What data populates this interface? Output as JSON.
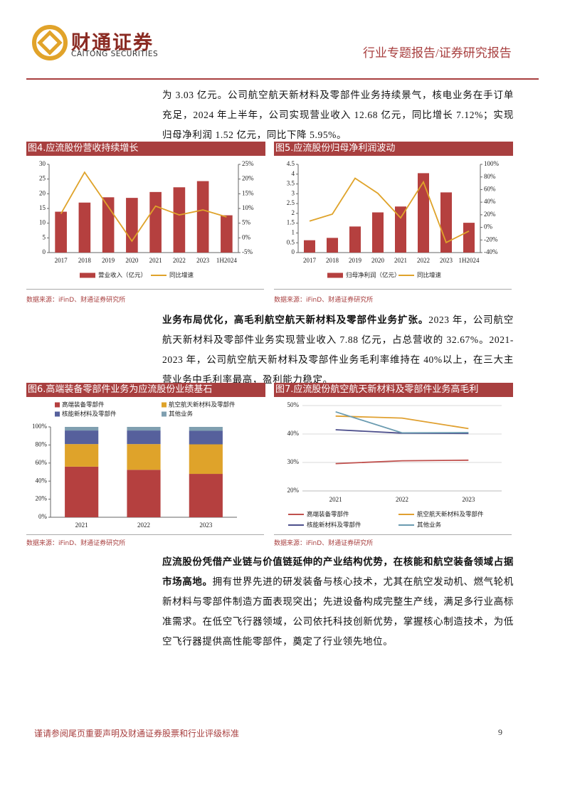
{
  "header": {
    "logo": "财通证券",
    "logo_en": "CAITONG SECURITIES",
    "report_type": "行业专题报告/证券研究报告"
  },
  "paragraphs": [
    {
      "text": "为 3.03 亿元。公司航空航天新材料及零部件业务持续景气，核电业务在手订单充足，2024 年上半年，公司实现营业收入 12.68 亿元，同比增长 7.12%；实现归母净利润 1.52 亿元，同比下降 5.95%。"
    },
    {
      "bold": "业务布局优化，高毛利航空航天新材料及零部件业务扩张。",
      "text": "2023 年，公司航空航天新材料及零部件业务实现营业收入 7.88 亿元，占总营收的 32.67%。2021-2023 年，公司航空航天新材料及零部件业务毛利率维持在 40%以上，在三大主营业务中毛利率最高，盈利能力稳定。"
    },
    {
      "bold": "应流股份凭借产业链与价值链延伸的产业结构优势，在核能和航空装备领域占据市场高地。",
      "text": "拥有世界先进的研发装备与核心技术，尤其在航空发动机、燃气轮机新材料与零部件制造方面表现突出；先进设备构成完整生产线，满足多行业高标准需求。在低空飞行器领域，公司依托科技创新优势，掌握核心制造技术，为低空飞行器提供高性能零部件，奠定了行业领先地位。"
    }
  ],
  "chart_data": [
    {
      "type": "bar_line",
      "title": "图4.应流股份营收持续增长",
      "categories": [
        "2017",
        "2018",
        "2019",
        "2020",
        "2021",
        "2022",
        "2023",
        "1H2024"
      ],
      "series": [
        {
          "name": "营业收入（亿元）",
          "type": "bar",
          "color": "#b5403f",
          "values": [
            13.9,
            17.0,
            18.8,
            18.6,
            20.6,
            22.2,
            24.3,
            12.68
          ]
        },
        {
          "name": "同比增速",
          "type": "line",
          "axis": "y2",
          "color": "#dfa32a",
          "values": [
            8.2,
            22.3,
            10.6,
            -1.1,
            10.8,
            7.8,
            9.5,
            7.12
          ]
        }
      ],
      "ylim": [
        0,
        30
      ],
      "yticks": [
        0,
        5,
        10,
        15,
        20,
        25,
        30
      ],
      "y2lim": [
        -5,
        25
      ],
      "y2ticks": [
        {
          "value": -5,
          "label": "-5%"
        },
        {
          "value": 0,
          "label": "0%"
        },
        {
          "value": 5,
          "label": "5%"
        },
        {
          "value": 10,
          "label": "10%"
        },
        {
          "value": 15,
          "label": "15%"
        },
        {
          "value": 20,
          "label": "20%"
        },
        {
          "value": 25,
          "label": "25%"
        }
      ],
      "grid": false,
      "legend": "bottom"
    },
    {
      "type": "bar_line",
      "title": "图5.应流股份归母净利润波动",
      "categories": [
        "2017",
        "2018",
        "2019",
        "2020",
        "2021",
        "2022",
        "2023",
        "1H2024"
      ],
      "series": [
        {
          "name": "归母净利润（亿元）",
          "type": "bar",
          "color": "#b5403f",
          "values": [
            0.63,
            0.75,
            1.33,
            2.05,
            2.35,
            4.05,
            3.07,
            1.52
          ]
        },
        {
          "name": "同比增速",
          "type": "line",
          "axis": "y2",
          "color": "#dfa32a",
          "values": [
            10,
            21,
            78,
            54,
            15,
            72,
            -24,
            -5.95
          ]
        }
      ],
      "ylim": [
        0,
        4.5
      ],
      "yticks": [
        0,
        0.5,
        1,
        1.5,
        2,
        2.5,
        3,
        3.5,
        4,
        4.5
      ],
      "y2lim": [
        -40,
        100
      ],
      "y2ticks": [
        {
          "value": -40,
          "label": "-40%"
        },
        {
          "value": -20,
          "label": "-20%"
        },
        {
          "value": 0,
          "label": "0%"
        },
        {
          "value": 20,
          "label": "20%"
        },
        {
          "value": 40,
          "label": "40%"
        },
        {
          "value": 60,
          "label": "60%"
        },
        {
          "value": 80,
          "label": "80%"
        },
        {
          "value": 100,
          "label": "100%"
        }
      ],
      "grid": false,
      "legend": "bottom"
    },
    {
      "type": "stacked_bar",
      "title": "图6.高端装备零部件业务为应流股份业绩基石",
      "categories": [
        "2021",
        "2022",
        "2023"
      ],
      "series": [
        {
          "name": "高端装备零部件",
          "type": "bar",
          "color": "#b5403f",
          "values": [
            56,
            52.5,
            48
          ]
        },
        {
          "name": "航空航天新材料及零部件",
          "type": "bar",
          "color": "#dfa32a",
          "values": [
            25,
            28.5,
            32.7
          ]
        },
        {
          "name": "核能新材料及零部件",
          "type": "bar",
          "color": "#56609c",
          "values": [
            15,
            15,
            15
          ]
        },
        {
          "name": "其他业务",
          "type": "bar",
          "color": "#7f9fb0",
          "values": [
            4,
            4,
            4.3
          ]
        }
      ],
      "ylim": [
        0,
        100
      ],
      "yticks": [
        {
          "value": 0,
          "label": "0%"
        },
        {
          "value": 20,
          "label": "20%"
        },
        {
          "value": 40,
          "label": "40%"
        },
        {
          "value": 60,
          "label": "60%"
        },
        {
          "value": 80,
          "label": "80%"
        },
        {
          "value": 100,
          "label": "100%"
        }
      ],
      "grid": false,
      "legend": "top"
    },
    {
      "type": "line",
      "title": "图7.应流股份航空航天新材料及零部件业务高毛利",
      "categories": [
        "2021",
        "2022",
        "2023"
      ],
      "series": [
        {
          "name": "高端装备零部件",
          "type": "line",
          "color": "#c0504d",
          "values": [
            29.6,
            30.6,
            30.8
          ]
        },
        {
          "name": "航空航天新材料及零部件",
          "type": "line",
          "color": "#e0a030",
          "values": [
            46.3,
            45.6,
            41.9
          ]
        },
        {
          "name": "核能新材料及零部件",
          "type": "line",
          "color": "#4d4f8c",
          "values": [
            41.5,
            40.3,
            40.2
          ]
        },
        {
          "name": "其他业务",
          "type": "line",
          "color": "#6a9bb0",
          "values": [
            47.8,
            40.4,
            40.5
          ]
        }
      ],
      "ylim": [
        20,
        50
      ],
      "yticks": [
        {
          "value": 20,
          "label": "20%"
        },
        {
          "value": 30,
          "label": "30%"
        },
        {
          "value": 40,
          "label": "40%"
        },
        {
          "value": 50,
          "label": "50%"
        }
      ],
      "grid": true,
      "legend": "bottom"
    }
  ],
  "sources": [
    "数据来源：iFinD、财通证券研究所",
    "数据来源：iFinD、财通证券研究所",
    "数据来源：iFinD、财通证券研究所",
    "数据来源：iFinD、财通证券研究所"
  ],
  "footer": {
    "disclaimer": "谨请参阅尾页重要声明及财通证券股票和行业评级标准",
    "page": "9"
  }
}
